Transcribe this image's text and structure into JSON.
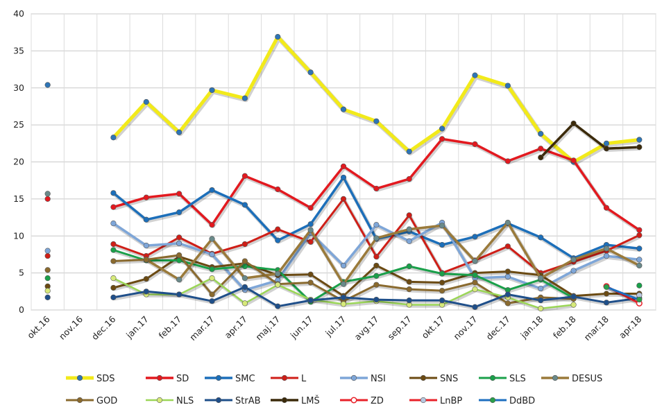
{
  "chart_data": {
    "type": "line",
    "title": "",
    "xlabel": "",
    "ylabel": "",
    "ylim": [
      0,
      40
    ],
    "yticks": [
      0,
      5,
      10,
      15,
      20,
      25,
      30,
      35,
      40
    ],
    "grid": true,
    "legend_position": "bottom",
    "categories": [
      "okt.16",
      "nov.16",
      "dec.16",
      "jan.17",
      "feb.17",
      "mar.17",
      "apr.17",
      "maj.17",
      "jun.17",
      "jul.17",
      "avg.17",
      "sep.17",
      "okt.17",
      "nov.17",
      "dec.17",
      "jan.18",
      "feb.18",
      "mar.18",
      "apr.18"
    ],
    "series": [
      {
        "name": "SDS",
        "color": "#f2ea1a",
        "marker": "#2e75b6",
        "width": 5,
        "values": [
          30.4,
          null,
          23.3,
          28.1,
          24.0,
          29.7,
          28.6,
          36.9,
          32.1,
          27.1,
          25.5,
          21.4,
          24.5,
          31.7,
          30.3,
          23.8,
          20.0,
          22.5,
          23.0
        ]
      },
      {
        "name": "SD",
        "color": "#e3191f",
        "marker": "#e3191f",
        "width": 3.5,
        "values": [
          15.0,
          null,
          13.9,
          15.2,
          15.7,
          11.5,
          18.1,
          16.3,
          13.8,
          19.4,
          16.4,
          17.7,
          23.1,
          22.4,
          20.1,
          21.8,
          20.2,
          13.8,
          10.8
        ]
      },
      {
        "name": "SMC",
        "color": "#1c6fba",
        "marker": "#1c6fba",
        "width": 3.5,
        "values": [
          null,
          null,
          15.8,
          12.2,
          13.2,
          16.2,
          14.2,
          9.4,
          11.6,
          17.9,
          9.6,
          10.6,
          8.8,
          9.9,
          11.7,
          9.8,
          7.0,
          8.8,
          8.3
        ]
      },
      {
        "name": "L",
        "color": "#cf1e17",
        "marker": "#cf1e17",
        "width": 3,
        "values": [
          7.3,
          null,
          8.9,
          7.3,
          9.8,
          7.6,
          8.9,
          10.9,
          9.2,
          15.0,
          7.2,
          12.8,
          5.0,
          6.7,
          8.6,
          5.0,
          6.5,
          8.0,
          10.1
        ]
      },
      {
        "name": "NSI",
        "color": "#7ea6d8",
        "marker": "#7ea6d8",
        "width": 3.5,
        "values": [
          8.0,
          null,
          11.7,
          8.7,
          9.0,
          7.5,
          2.7,
          4.0,
          10.4,
          6.0,
          11.5,
          9.3,
          11.8,
          4.3,
          4.5,
          2.9,
          5.3,
          7.3,
          6.8
        ]
      },
      {
        "name": "SNS",
        "color": "#6b4a12",
        "marker": "#6b4a12",
        "width": 3,
        "values": [
          3.2,
          null,
          3.0,
          4.2,
          7.2,
          5.8,
          6.3,
          4.7,
          4.8,
          1.9,
          6.0,
          3.8,
          3.7,
          5.0,
          5.2,
          4.7,
          1.9,
          2.2,
          2.2
        ]
      },
      {
        "name": "SLS",
        "color": "#1aa04a",
        "marker": "#1aa04a",
        "width": 3,
        "values": [
          4.3,
          null,
          8.1,
          6.7,
          6.7,
          5.5,
          5.9,
          5.4,
          1.1,
          3.8,
          4.6,
          5.9,
          4.9,
          4.7,
          2.7,
          4.1,
          1.6,
          null,
          3.3
        ]
      },
      {
        "name": "DESUS",
        "color": "#9a7a3a",
        "marker": "#6a8a8a",
        "width": 3.5,
        "values": [
          15.7,
          null,
          null,
          6.8,
          4.1,
          9.6,
          4.3,
          4.9,
          10.8,
          3.5,
          9.7,
          10.9,
          11.4,
          6.6,
          11.8,
          4.3,
          6.8,
          8.3,
          6.0
        ]
      },
      {
        "name": "GOD",
        "color": "#8a6a2e",
        "marker": "#8a6a2e",
        "width": 3,
        "values": [
          5.4,
          null,
          6.6,
          6.8,
          7.4,
          2.1,
          6.6,
          3.5,
          3.7,
          1.2,
          3.4,
          2.8,
          2.6,
          3.7,
          0.9,
          1.7,
          1.5,
          null,
          null
        ]
      },
      {
        "name": "NLS",
        "color": "#9bd657",
        "marker": "#d7ea7a",
        "width": 2.5,
        "values": [
          2.6,
          null,
          4.3,
          2.1,
          2.1,
          4.3,
          0.9,
          3.4,
          1.4,
          0.8,
          1.2,
          0.7,
          0.7,
          2.8,
          1.7,
          0.2,
          0.7,
          null,
          null
        ]
      },
      {
        "name": "StrAB",
        "color": "#1f4f8a",
        "marker": "#1f4f8a",
        "width": 3,
        "values": [
          1.7,
          null,
          1.7,
          2.5,
          2.1,
          1.2,
          3.1,
          0.5,
          1.3,
          1.7,
          1.4,
          1.3,
          1.3,
          0.4,
          2.1,
          1.3,
          1.8,
          1.0,
          1.6
        ]
      },
      {
        "name": "LMŠ",
        "color": "#3b2a0a",
        "marker": "#3b2a0a",
        "width": 3.5,
        "values": [
          null,
          null,
          null,
          null,
          null,
          null,
          null,
          null,
          null,
          null,
          null,
          null,
          null,
          null,
          null,
          20.6,
          25.2,
          21.8,
          22.0
        ]
      },
      {
        "name": "ZD",
        "color": "#e8222a",
        "marker": "#ffffff",
        "width": 3,
        "values": [
          null,
          null,
          null,
          null,
          null,
          null,
          null,
          null,
          null,
          null,
          null,
          null,
          null,
          null,
          null,
          null,
          null,
          3.2,
          0.9
        ]
      },
      {
        "name": "LnBP",
        "color": "#e8222a",
        "marker": "#b7c7df",
        "width": 3,
        "values": [
          null,
          null,
          null,
          null,
          null,
          null,
          null,
          null,
          null,
          null,
          null,
          null,
          null,
          null,
          null,
          null,
          null,
          null,
          2.0
        ]
      },
      {
        "name": "DdBD",
        "color": "#1d6fc0",
        "marker": "#2aa04a",
        "width": 3,
        "values": [
          null,
          null,
          null,
          null,
          null,
          null,
          null,
          null,
          null,
          null,
          null,
          null,
          null,
          null,
          null,
          null,
          null,
          3.1,
          1.4
        ]
      }
    ]
  }
}
